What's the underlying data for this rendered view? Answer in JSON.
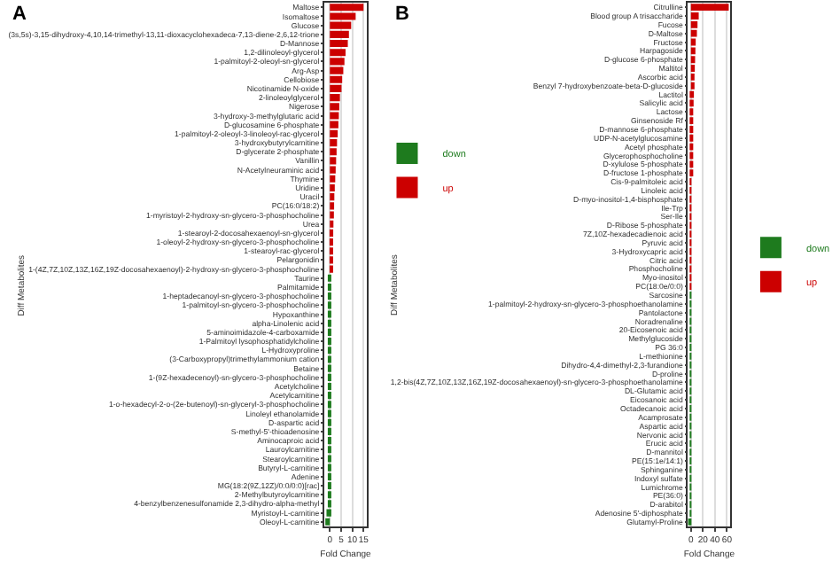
{
  "chart_data": [
    {
      "type": "bar",
      "title": "A",
      "orientation": "horizontal",
      "xlabel": "Fold Change",
      "ylabel": "Diff Metabolites",
      "xlim": [
        -2.5,
        16.5
      ],
      "xticks": [
        0,
        5,
        10,
        15
      ],
      "grid": "x",
      "legend": "right",
      "categories": [
        "Maltose",
        "Isomaltose",
        "Glucose",
        "(3s,5s)-3,15-dihydroxy-4,10,14-trimethyl-13,11-dioxacyclohexadeca-7,13-diene-2,6,12-trione",
        "D-Mannose",
        "1,2-dilinoleoyl-glycerol",
        "1-palmitoyl-2-oleoyl-sn-glycerol",
        "Arg-Asp",
        "Cellobiose",
        "Nicotinamide N-oxide",
        "2-linoleoylglycerol",
        "Nigerose",
        "3-hydroxy-3-methylglutaric acid",
        "D-glucosamine 6-phosphate",
        "1-palmitoyl-2-oleoyl-3-linoleoyl-rac-glycerol",
        "3-hydroxybutyrylcarnitine",
        "D-glycerate 2-phosphate",
        "Vanillin",
        "N-Acetylneuraminic acid",
        "Thymine",
        "Uridine",
        "Uracil",
        "PC(16:0/18:2)",
        "1-myristoyl-2-hydroxy-sn-glycero-3-phosphocholine",
        "Urea",
        "1-stearoyl-2-docosahexaenoyl-sn-glycerol",
        "1-oleoyl-2-hydroxy-sn-glycero-3-phosphocholine",
        "1-stearoyl-rac-glycerol",
        "Pelargonidin",
        "1-(4Z,7Z,10Z,13Z,16Z,19Z-docosahexaenoyl)-2-hydroxy-sn-glycero-3-phosphocholine",
        "Taurine",
        "Palmitamide",
        "1-heptadecanoyl-sn-glycero-3-phosphocholine",
        "1-palmitoyl-sn-glycero-3-phosphocholine",
        "Hypoxanthine",
        "alpha-Linolenic acid",
        "5-aminoimidazole-4-carboxamide",
        "1-Palmitoyl lysophosphatidylcholine",
        "L-Hydroxyproline",
        "(3-Carboxypropyl)trimethylammonium cation",
        "Betaine",
        "1-(9Z-hexadecenoyl)-sn-glycero-3-phosphocholine",
        "Acetylcholine",
        "Acetylcarnitine",
        "1-o-hexadecyl-2-o-(2e-butenoyl)-sn-glyceryl-3-phosphocholine",
        "Linoleyl ethanolamide",
        "D-aspartic acid",
        "S-methyl-5'-thioadenosine",
        "Aminocaproic acid",
        "Lauroylcarnitine",
        "Stearoylcarnitine",
        "Butyryl-L-carnitine",
        "Adenine",
        "MG(18:2(9Z,12Z)/0:0/0:0)[rac]",
        "2-Methylbutyroylcarnitine",
        "4-benzylbenzenesulfonamide 2,3-dihydro-alpha-methyl",
        "Myristoyl-L-carnitine",
        "Oleoyl-L-carnitine"
      ],
      "series": [
        {
          "name": "down",
          "color": "#1e7b1e",
          "values": [
            null,
            null,
            null,
            null,
            null,
            null,
            null,
            null,
            null,
            null,
            null,
            null,
            null,
            null,
            null,
            null,
            null,
            null,
            null,
            null,
            null,
            null,
            null,
            null,
            null,
            null,
            null,
            null,
            null,
            null,
            -0.8,
            -0.5,
            -0.4,
            -0.4,
            -0.4,
            -0.4,
            -0.4,
            -0.4,
            -0.4,
            -0.4,
            -0.4,
            -0.4,
            -0.4,
            -0.4,
            -0.4,
            -0.4,
            -0.4,
            -0.4,
            -0.5,
            -0.5,
            -0.5,
            -0.5,
            -0.5,
            -0.6,
            -0.6,
            -0.8,
            -1.5,
            -2
          ]
        },
        {
          "name": "up",
          "color": "#cc0000",
          "values": [
            15,
            11.5,
            9.5,
            8.5,
            8,
            7,
            6.5,
            6,
            5.5,
            5.2,
            4.5,
            4.2,
            4,
            3.8,
            3.5,
            3.2,
            3,
            2.8,
            2.6,
            2.4,
            2.2,
            2,
            1.9,
            1.8,
            1.6,
            1.5,
            1.4,
            1.3,
            1.2,
            1,
            null,
            null,
            null,
            null,
            null,
            null,
            null,
            null,
            null,
            null,
            null,
            null,
            null,
            null,
            null,
            null,
            null,
            null,
            null,
            null,
            null,
            null,
            null,
            null,
            null,
            null,
            null,
            null
          ]
        }
      ]
    },
    {
      "type": "bar",
      "title": "B",
      "orientation": "horizontal",
      "xlabel": "Fold Change",
      "ylabel": "Diff Metabolites",
      "xlim": [
        -5,
        66
      ],
      "xticks": [
        0,
        20,
        40,
        60
      ],
      "grid": "x",
      "legend": "right",
      "categories": [
        "Citrulline",
        "Blood group A trisaccharide",
        "Fucose",
        "D-Maltose",
        "Fructose",
        "Harpagoside",
        "D-glucose 6-phosphate",
        "Maltitol",
        "Ascorbic acid",
        "Benzyl 7-hydroxybenzoate-beta-D-glucoside",
        "Lactitol",
        "Salicylic acid",
        "Lactose",
        "Ginsenoside Rf",
        "D-mannose 6-phosphate",
        "UDP-N-acetylglucosamine",
        "Acetyl phosphate",
        "Glycerophosphocholine",
        "D-xylulose 5-phosphate",
        "D-fructose 1-phosphate",
        "Cis-9-palmitoleic acid",
        "Linoleic acid",
        "D-myo-inositol-1,4-bisphosphate",
        "Ile-Trp",
        "Ser-Ile",
        "D-Ribose 5-phosphate",
        "7Z,10Z-hexadecadienoic acid",
        "Pyruvic acid",
        "3-Hydroxycapric acid",
        "Citric acid",
        "Phosphocholine",
        "Myo-inositol",
        "PC(18:0e/0:0)",
        "Sarcosine",
        "1-palmitoyl-2-hydroxy-sn-glycero-3-phosphoethanolamine",
        "Pantolactone",
        "Noradrenaline",
        "20-Eicosenoic acid",
        "Methylglucoside",
        "PG 36:0",
        "L-methionine",
        "Dihydro-4,4-dimethyl-2,3-furandione",
        "D-proline",
        "1,2-bis(4Z,7Z,10Z,13Z,16Z,19Z-docosahexaenoyl)-sn-glycero-3-phosphoethanolamine",
        "DL-Glutamic acid",
        "Eicosanoic acid",
        "Octadecanoic acid",
        "Acamprosate",
        "Aspartic acid",
        "Nervonic acid",
        "Erucic acid",
        "D-mannitol",
        "PE(15:1e/14:1)",
        "Sphinganine",
        "Indoxyl sulfate",
        "Lumichrome",
        "PE(36:0)",
        "D-arabitol",
        "Adenosine 5'-diphosphate",
        "Glutamyl-Proline"
      ],
      "series": [
        {
          "name": "down",
          "color": "#1e7b1e",
          "values": [
            null,
            null,
            null,
            null,
            null,
            null,
            null,
            null,
            null,
            null,
            null,
            null,
            null,
            null,
            null,
            null,
            null,
            null,
            null,
            null,
            null,
            null,
            null,
            null,
            null,
            null,
            null,
            null,
            null,
            null,
            null,
            null,
            null,
            -0.5,
            -0.5,
            -0.5,
            -0.5,
            -0.5,
            -0.5,
            -0.5,
            -0.5,
            -0.5,
            -0.5,
            -0.5,
            -0.5,
            -0.5,
            -0.5,
            -0.5,
            -0.5,
            -0.5,
            -0.5,
            -0.6,
            -0.6,
            -0.6,
            -0.7,
            -0.7,
            -0.8,
            -1,
            -1.5,
            -3
          ]
        },
        {
          "name": "up",
          "color": "#cc0000",
          "values": [
            63,
            13,
            11,
            10,
            8,
            7.5,
            7,
            6.5,
            6,
            6,
            5,
            4.5,
            3.5,
            3,
            1.5,
            1.3,
            1.2,
            1.1,
            1,
            1,
            0.9,
            0.9,
            0.8,
            0.8,
            0.7,
            0.7,
            0.6,
            0.6,
            0.6,
            0.5,
            0.5,
            0.5,
            0.4,
            null,
            null,
            null,
            null,
            null,
            null,
            null,
            null,
            null,
            null,
            null,
            null,
            null,
            null,
            null,
            null,
            null,
            null,
            null,
            null,
            null,
            null,
            null,
            null,
            null,
            null,
            null
          ]
        }
      ]
    }
  ]
}
